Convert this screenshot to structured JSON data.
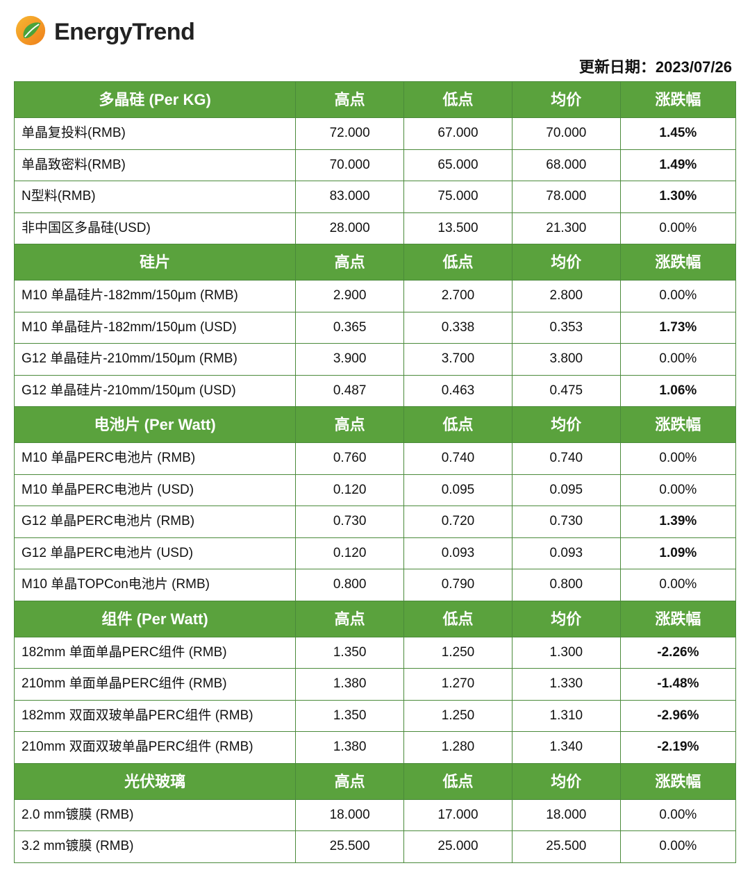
{
  "brand": "EnergyTrend",
  "update_label": "更新日期：",
  "update_date": "2023/07/26",
  "colors": {
    "header_bg": "#5aa23d",
    "header_fg": "#ffffff",
    "border": "#4a8a3a",
    "up": "#d11a1a",
    "down": "#5aa23d",
    "flat": "#111111",
    "row_bg": "#ffffff"
  },
  "columns": {
    "high": "高点",
    "low": "低点",
    "avg": "均价",
    "change": "涨跌幅"
  },
  "sections": [
    {
      "title": "多晶硅 (Per KG)",
      "rows": [
        {
          "name": "单晶复投料(RMB)",
          "high": "72.000",
          "low": "67.000",
          "avg": "70.000",
          "change": "1.45%",
          "dir": "up"
        },
        {
          "name": "单晶致密料(RMB)",
          "high": "70.000",
          "low": "65.000",
          "avg": "68.000",
          "change": "1.49%",
          "dir": "up"
        },
        {
          "name": "N型料(RMB)",
          "high": "83.000",
          "low": "75.000",
          "avg": "78.000",
          "change": "1.30%",
          "dir": "up"
        },
        {
          "name": "非中国区多晶硅(USD)",
          "high": "28.000",
          "low": "13.500",
          "avg": "21.300",
          "change": "0.00%",
          "dir": "flat"
        }
      ]
    },
    {
      "title": "硅片",
      "rows": [
        {
          "name": "M10 单晶硅片-182mm/150μm (RMB)",
          "high": "2.900",
          "low": "2.700",
          "avg": "2.800",
          "change": "0.00%",
          "dir": "flat"
        },
        {
          "name": "M10 单晶硅片-182mm/150μm (USD)",
          "high": "0.365",
          "low": "0.338",
          "avg": "0.353",
          "change": "1.73%",
          "dir": "up"
        },
        {
          "name": "G12 单晶硅片-210mm/150μm  (RMB)",
          "high": "3.900",
          "low": "3.700",
          "avg": "3.800",
          "change": "0.00%",
          "dir": "flat"
        },
        {
          "name": "G12 单晶硅片-210mm/150μm  (USD)",
          "high": "0.487",
          "low": "0.463",
          "avg": "0.475",
          "change": "1.06%",
          "dir": "up"
        }
      ]
    },
    {
      "title": "电池片 (Per Watt)",
      "rows": [
        {
          "name": "M10 单晶PERC电池片 (RMB)",
          "high": "0.760",
          "low": "0.740",
          "avg": "0.740",
          "change": "0.00%",
          "dir": "flat"
        },
        {
          "name": "M10 单晶PERC电池片 (USD)",
          "high": "0.120",
          "low": "0.095",
          "avg": "0.095",
          "change": "0.00%",
          "dir": "flat"
        },
        {
          "name": "G12 单晶PERC电池片 (RMB)",
          "high": "0.730",
          "low": "0.720",
          "avg": "0.730",
          "change": "1.39%",
          "dir": "up"
        },
        {
          "name": "G12 单晶PERC电池片 (USD)",
          "high": "0.120",
          "low": "0.093",
          "avg": "0.093",
          "change": "1.09%",
          "dir": "up"
        },
        {
          "name": "M10 单晶TOPCon电池片 (RMB)",
          "high": "0.800",
          "low": "0.790",
          "avg": "0.800",
          "change": "0.00%",
          "dir": "flat"
        }
      ]
    },
    {
      "title": "组件 (Per Watt)",
      "rows": [
        {
          "name": "182mm 单面单晶PERC组件 (RMB)",
          "high": "1.350",
          "low": "1.250",
          "avg": "1.300",
          "change": "-2.26%",
          "dir": "down"
        },
        {
          "name": "210mm 单面单晶PERC组件 (RMB)",
          "high": "1.380",
          "low": "1.270",
          "avg": "1.330",
          "change": "-1.48%",
          "dir": "down"
        },
        {
          "name": "182mm 双面双玻单晶PERC组件 (RMB)",
          "high": "1.350",
          "low": "1.250",
          "avg": "1.310",
          "change": "-2.96%",
          "dir": "down"
        },
        {
          "name": "210mm 双面双玻单晶PERC组件 (RMB)",
          "high": "1.380",
          "low": "1.280",
          "avg": "1.340",
          "change": "-2.19%",
          "dir": "down"
        }
      ]
    },
    {
      "title": "光伏玻璃",
      "rows": [
        {
          "name": "2.0 mm镀膜 (RMB)",
          "high": "18.000",
          "low": "17.000",
          "avg": "18.000",
          "change": "0.00%",
          "dir": "flat"
        },
        {
          "name": "3.2 mm镀膜 (RMB)",
          "high": "25.500",
          "low": "25.000",
          "avg": "25.500",
          "change": "0.00%",
          "dir": "flat"
        }
      ]
    }
  ]
}
